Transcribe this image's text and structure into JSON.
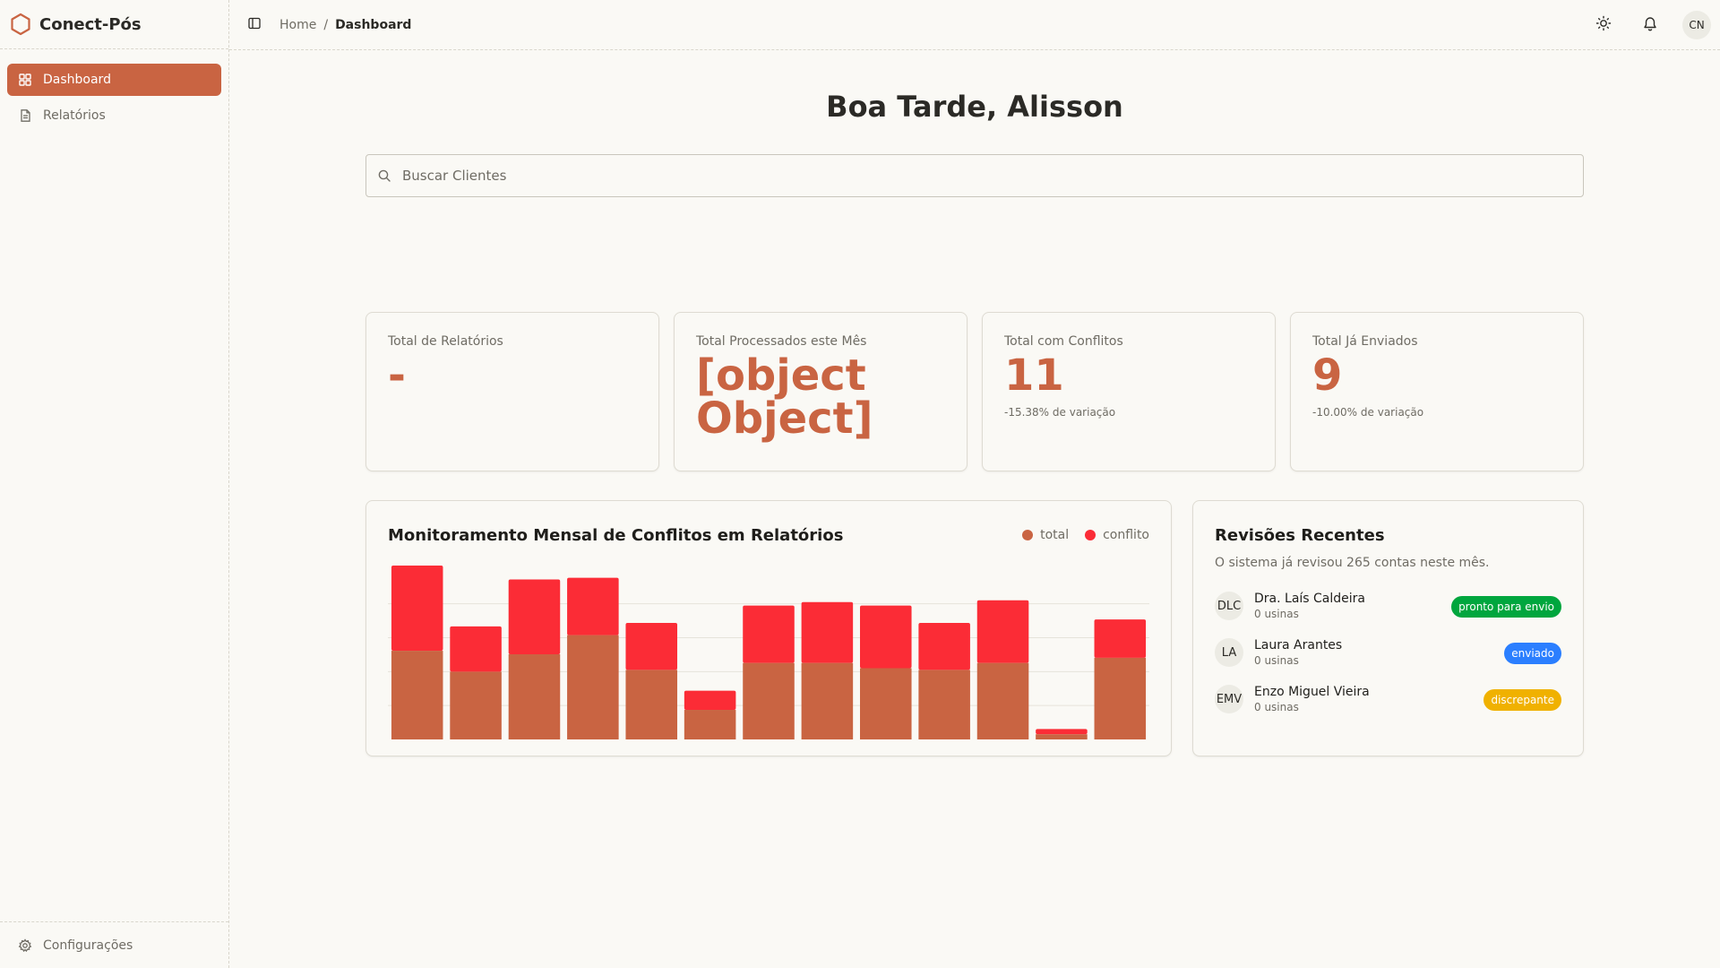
{
  "app": {
    "name": "Conect-Pós"
  },
  "colors": {
    "accent": "#c96442",
    "conflict": "#fb2c36",
    "ok": "#00a63e",
    "sent": "#2b7fff",
    "warn": "#f0b100"
  },
  "sidebar": {
    "items": [
      {
        "label": "Dashboard",
        "icon": "layout-grid-icon",
        "active": true
      },
      {
        "label": "Relatórios",
        "icon": "file-text-icon",
        "active": false
      }
    ],
    "footer": {
      "label": "Configurações",
      "icon": "gear-icon"
    }
  },
  "topbar": {
    "breadcrumb": {
      "home": "Home",
      "separator": "/",
      "current": "Dashboard"
    },
    "avatar_initials": "CN"
  },
  "main": {
    "greeting": "Boa Tarde, Alisson",
    "search": {
      "placeholder": "Buscar Clientes",
      "value": ""
    },
    "stats": [
      {
        "label": "Total de Relatórios",
        "value": "-",
        "sub": ""
      },
      {
        "label": "Total Processados este Mês",
        "value": "[object Object]",
        "sub": ""
      },
      {
        "label": "Total com Conflitos",
        "value": "11",
        "sub": "-15.38% de variação"
      },
      {
        "label": "Total Já Enviados",
        "value": "9",
        "sub": "-10.00% de variação"
      }
    ],
    "recent": {
      "title": "Revisões Recentes",
      "subtitle": "O sistema já revisou 265 contas neste mês.",
      "items": [
        {
          "initials": "DLC",
          "name": "Dra. Laís Caldeira",
          "meta": "0 usinas",
          "status": "pronto para envio",
          "status_color": "#00a63e"
        },
        {
          "initials": "LA",
          "name": "Laura Arantes",
          "meta": "0 usinas",
          "status": "enviado",
          "status_color": "#2b7fff"
        },
        {
          "initials": "EMV",
          "name": "Enzo Miguel Vieira",
          "meta": "0 usinas",
          "status": "discrepante",
          "status_color": "#f0b100"
        }
      ]
    }
  },
  "chart_data": {
    "type": "bar",
    "stacked": true,
    "title": "Monitoramento Mensal de Conflitos em Relatórios",
    "legend_position": "top-right",
    "grid": true,
    "ylim": [
      0,
      100
    ],
    "series": [
      {
        "name": "total",
        "color": "#c96442",
        "values": [
          51,
          39,
          49,
          60,
          40,
          17,
          44,
          44,
          41,
          40,
          44,
          3,
          47
        ]
      },
      {
        "name": "conflito",
        "color": "#fb2c36",
        "values": [
          49,
          26,
          43,
          33,
          27,
          11,
          33,
          35,
          36,
          27,
          36,
          3,
          22
        ]
      }
    ]
  }
}
